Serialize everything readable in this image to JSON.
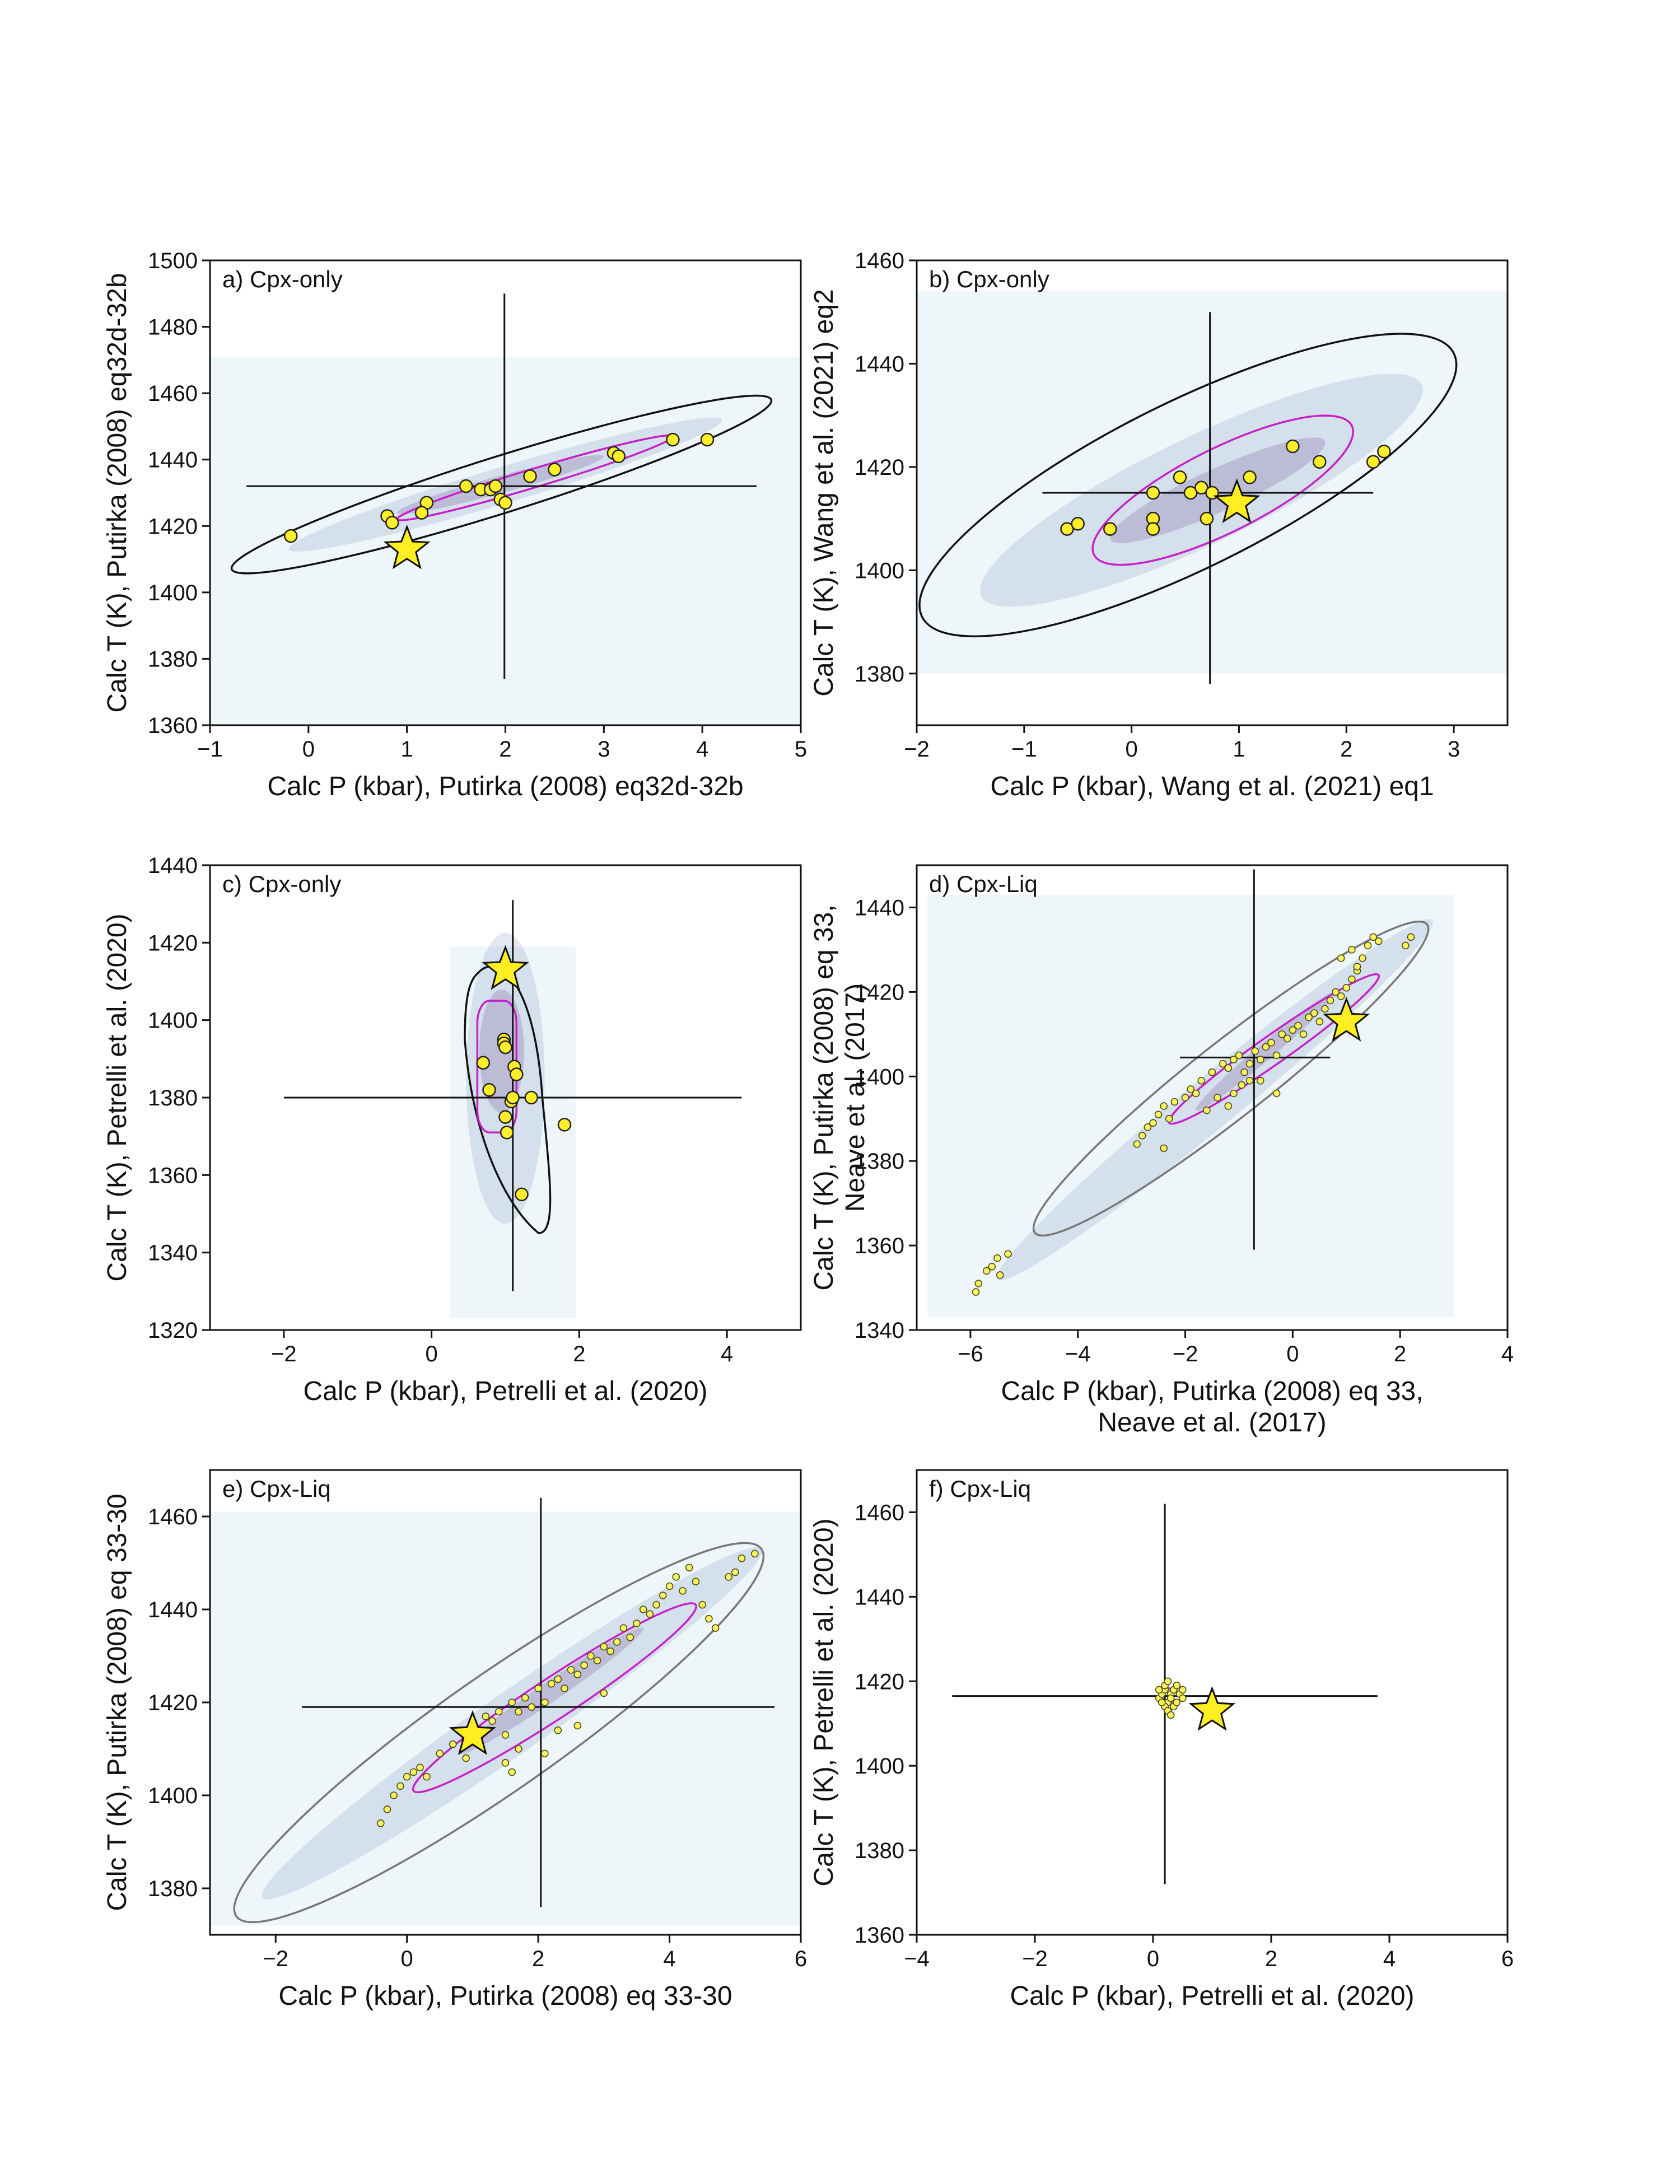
{
  "colors": {
    "points": "#ffef2a",
    "star": "#ffee22",
    "inner_contour": "#c81fc8",
    "outer_contour": "#111111",
    "outer_contour_grey": "#777777",
    "density_background": "#eef6fa",
    "density_core": "#6a3d8c"
  },
  "chart_data": [
    {
      "id": "a",
      "type": "scatter",
      "panel_label": "a) Cpx-only",
      "xlabel": [
        "Calc P (kbar), Putirka (2008) eq32d-32b"
      ],
      "ylabel": [
        "Calc T (K), Putirka (2008) eq32d-32b"
      ],
      "xlim": [
        -1,
        5
      ],
      "ylim": [
        1360,
        1500
      ],
      "xticks": [
        -1,
        0,
        1,
        2,
        3,
        4,
        5
      ],
      "yticks": [
        1360,
        1380,
        1400,
        1420,
        1440,
        1460,
        1480,
        1500
      ],
      "hexbin_extent": {
        "x": [
          -1,
          5
        ],
        "y": [
          1360,
          1471
        ]
      },
      "outer_contour": "black",
      "points": [
        [
          -0.18,
          1417
        ],
        [
          0.8,
          1423
        ],
        [
          0.85,
          1421
        ],
        [
          1.2,
          1427
        ],
        [
          1.15,
          1424
        ],
        [
          1.6,
          1432
        ],
        [
          1.75,
          1431
        ],
        [
          1.85,
          1431
        ],
        [
          1.9,
          1432
        ],
        [
          1.95,
          1428
        ],
        [
          2.0,
          1427
        ],
        [
          2.25,
          1435
        ],
        [
          2.5,
          1437
        ],
        [
          3.1,
          1442
        ],
        [
          3.15,
          1441
        ],
        [
          3.7,
          1446
        ],
        [
          4.05,
          1446
        ]
      ],
      "star": [
        1.0,
        1413
      ],
      "crosshair": {
        "x": 1.99,
        "y": 1432,
        "x_range": [
          -0.63,
          4.55
        ],
        "y_range": [
          1374,
          1490
        ]
      },
      "outer_ellipse": [
        [
          -0.78,
          1407
        ],
        [
          4.7,
          1458
        ],
        [
          4.55,
          1460
        ],
        [
          -0.6,
          1410
        ]
      ],
      "inner_ellipse": {
        "cx": 2.0,
        "cy": 1432,
        "ex": 2.45,
        "ey": 1445,
        "w": 0.18
      }
    },
    {
      "id": "b",
      "type": "scatter",
      "panel_label": "b) Cpx-only",
      "xlabel": [
        "Calc P (kbar), Wang et al. (2021) eq1"
      ],
      "ylabel": [
        "Calc T (K), Wang et al. (2021)  eq2"
      ],
      "xlim": [
        -2,
        3.5
      ],
      "ylim": [
        1370,
        1460
      ],
      "xticks": [
        -2,
        -1,
        0,
        1,
        2,
        3
      ],
      "yticks": [
        1380,
        1400,
        1420,
        1440,
        1460
      ],
      "hexbin_extent": {
        "x": [
          -2,
          3.5
        ],
        "y": [
          1380,
          1454
        ]
      },
      "outer_contour": "black",
      "points": [
        [
          -0.6,
          1408
        ],
        [
          -0.5,
          1409
        ],
        [
          -0.2,
          1408
        ],
        [
          0.2,
          1415
        ],
        [
          0.2,
          1410
        ],
        [
          0.2,
          1408
        ],
        [
          0.45,
          1418
        ],
        [
          0.55,
          1415
        ],
        [
          0.65,
          1416
        ],
        [
          0.7,
          1410
        ],
        [
          0.75,
          1415
        ],
        [
          1.1,
          1418
        ],
        [
          1.5,
          1424
        ],
        [
          1.75,
          1421
        ],
        [
          2.25,
          1421
        ],
        [
          2.35,
          1423
        ]
      ],
      "star": [
        0.98,
        1413
      ],
      "crosshair": {
        "x": 0.73,
        "y": 1415,
        "x_range": [
          -0.83,
          2.25
        ],
        "y_range": [
          1378,
          1450
        ]
      },
      "inner_ellipse": {
        "cx": 0.75,
        "cy": 1415,
        "ex": 2.2,
        "ey": 1428,
        "w": 0.6
      }
    },
    {
      "id": "c",
      "type": "scatter",
      "panel_label": "c) Cpx-only",
      "xlabel": [
        "Calc P (kbar), Petrelli et al. (2020)"
      ],
      "ylabel": [
        "Calc T (K), Petrelli et al. (2020)"
      ],
      "xlim": [
        -3,
        5
      ],
      "ylim": [
        1320,
        1440
      ],
      "xticks": [
        -2,
        0,
        2,
        4
      ],
      "yticks": [
        1320,
        1340,
        1360,
        1380,
        1400,
        1420,
        1440
      ],
      "hexbin_extent": {
        "x": [
          0.25,
          1.95
        ],
        "y": [
          1323,
          1419
        ]
      },
      "outer_contour": "black",
      "points": [
        [
          0.7,
          1389
        ],
        [
          0.78,
          1382
        ],
        [
          0.98,
          1395
        ],
        [
          0.98,
          1394
        ],
        [
          1.0,
          1393
        ],
        [
          1.0,
          1375
        ],
        [
          1.02,
          1371
        ],
        [
          1.08,
          1379
        ],
        [
          1.12,
          1388
        ],
        [
          1.15,
          1386
        ],
        [
          1.1,
          1380
        ],
        [
          1.22,
          1355
        ],
        [
          1.35,
          1380
        ],
        [
          1.8,
          1373
        ]
      ],
      "star": [
        1.0,
        1413
      ],
      "crosshair": {
        "x": 1.1,
        "y": 1380,
        "x_range": [
          -2.0,
          4.2
        ],
        "y_range": [
          1330,
          1431
        ]
      }
    },
    {
      "id": "d",
      "type": "scatter",
      "panel_label": "d) Cpx-Liq",
      "xlabel": [
        "Calc P (kbar), Putirka (2008) eq 33,",
        "Neave et al. (2017)"
      ],
      "ylabel": [
        "Calc T (K), Putirka (2008) eq 33,",
        "Neave et al. (2017)"
      ],
      "xlim": [
        -7,
        4
      ],
      "ylim": [
        1340,
        1450
      ],
      "xticks": [
        -6,
        -4,
        -2,
        0,
        2,
        4
      ],
      "yticks": [
        1340,
        1360,
        1380,
        1400,
        1420,
        1440
      ],
      "hexbin_extent": {
        "x": [
          -6.8,
          3.0
        ],
        "y": [
          1343,
          1443
        ]
      },
      "outer_contour": "grey",
      "points_small": true,
      "points": [
        [
          -5.9,
          1349
        ],
        [
          -5.85,
          1351
        ],
        [
          -5.7,
          1354
        ],
        [
          -5.6,
          1355
        ],
        [
          -5.5,
          1357
        ],
        [
          -5.45,
          1353
        ],
        [
          -5.3,
          1358
        ],
        [
          -2.9,
          1384
        ],
        [
          -2.8,
          1386
        ],
        [
          -2.7,
          1388
        ],
        [
          -2.6,
          1389
        ],
        [
          -2.5,
          1391
        ],
        [
          -2.4,
          1393
        ],
        [
          -2.3,
          1390
        ],
        [
          -2.2,
          1394
        ],
        [
          -2.0,
          1395
        ],
        [
          -1.9,
          1397
        ],
        [
          -1.8,
          1396
        ],
        [
          -1.7,
          1399
        ],
        [
          -1.5,
          1401
        ],
        [
          -1.4,
          1395
        ],
        [
          -1.3,
          1403
        ],
        [
          -1.2,
          1402
        ],
        [
          -1.1,
          1404
        ],
        [
          -1.0,
          1405
        ],
        [
          -0.9,
          1401
        ],
        [
          -0.8,
          1403
        ],
        [
          -0.7,
          1406
        ],
        [
          -0.6,
          1404
        ],
        [
          -0.5,
          1407
        ],
        [
          -0.4,
          1408
        ],
        [
          -0.3,
          1405
        ],
        [
          -0.2,
          1410
        ],
        [
          -0.1,
          1409
        ],
        [
          0.0,
          1411
        ],
        [
          0.1,
          1412
        ],
        [
          0.2,
          1410
        ],
        [
          0.3,
          1414
        ],
        [
          0.4,
          1415
        ],
        [
          0.5,
          1413
        ],
        [
          0.6,
          1416
        ],
        [
          0.7,
          1418
        ],
        [
          0.8,
          1420
        ],
        [
          0.9,
          1419
        ],
        [
          1.0,
          1421
        ],
        [
          1.1,
          1423
        ],
        [
          1.2,
          1425
        ],
        [
          1.3,
          1428
        ],
        [
          1.4,
          1431
        ],
        [
          1.5,
          1433
        ],
        [
          1.6,
          1432
        ],
        [
          -1.1,
          1396
        ],
        [
          -1.2,
          1393
        ],
        [
          -0.95,
          1398
        ],
        [
          -0.6,
          1399
        ],
        [
          -0.3,
          1396
        ],
        [
          -2.4,
          1383
        ],
        [
          -1.6,
          1392
        ],
        [
          -0.8,
          1399
        ],
        [
          0.9,
          1428
        ],
        [
          1.1,
          1430
        ],
        [
          1.2,
          1426
        ],
        [
          2.1,
          1431
        ],
        [
          2.2,
          1433
        ]
      ],
      "star": [
        1.0,
        1413
      ],
      "crosshair": {
        "x": -0.72,
        "y": 1404.5,
        "x_range": [
          -2.1,
          0.7
        ],
        "y_range": [
          1359,
          1449
        ]
      },
      "outer_ellipse": {
        "x1": -4.8,
        "y1": 1363,
        "x2": 2.5,
        "y2": 1436,
        "w": 0.75
      },
      "inner_ellipse": {
        "x1": -2.3,
        "y1": 1389,
        "x2": 1.6,
        "y2": 1424,
        "w": 0.55
      }
    },
    {
      "id": "e",
      "type": "scatter",
      "panel_label": "e) Cpx-Liq",
      "xlabel": [
        "Calc P (kbar), Putirka (2008) eq 33-30"
      ],
      "ylabel": [
        "Calc T (K), Putirka (2008) eq 33-30"
      ],
      "xlim": [
        -3,
        6
      ],
      "ylim": [
        1370,
        1470
      ],
      "xticks": [
        -2,
        0,
        2,
        4,
        6
      ],
      "yticks": [
        1380,
        1400,
        1420,
        1440,
        1460
      ],
      "hexbin_extent": {
        "x": [
          -3,
          6
        ],
        "y": [
          1372,
          1461
        ]
      },
      "outer_contour": "grey",
      "points_small": true,
      "points": [
        [
          -0.4,
          1394
        ],
        [
          -0.3,
          1397
        ],
        [
          -0.2,
          1400
        ],
        [
          -0.1,
          1402
        ],
        [
          0.0,
          1404
        ],
        [
          0.1,
          1405
        ],
        [
          0.2,
          1406
        ],
        [
          0.3,
          1404
        ],
        [
          0.5,
          1409
        ],
        [
          0.7,
          1411
        ],
        [
          0.9,
          1413
        ],
        [
          1.1,
          1414
        ],
        [
          1.3,
          1416
        ],
        [
          1.4,
          1418
        ],
        [
          1.5,
          1413
        ],
        [
          1.6,
          1420
        ],
        [
          1.7,
          1418
        ],
        [
          1.8,
          1421
        ],
        [
          1.9,
          1419
        ],
        [
          2.0,
          1423
        ],
        [
          2.1,
          1420
        ],
        [
          2.2,
          1424
        ],
        [
          2.3,
          1425
        ],
        [
          2.4,
          1423
        ],
        [
          2.5,
          1427
        ],
        [
          2.6,
          1426
        ],
        [
          2.7,
          1428
        ],
        [
          2.8,
          1430
        ],
        [
          2.9,
          1429
        ],
        [
          3.0,
          1432
        ],
        [
          3.1,
          1431
        ],
        [
          3.2,
          1433
        ],
        [
          3.3,
          1436
        ],
        [
          3.4,
          1434
        ],
        [
          3.5,
          1437
        ],
        [
          3.6,
          1440
        ],
        [
          3.7,
          1439
        ],
        [
          3.8,
          1441
        ],
        [
          3.9,
          1443
        ],
        [
          4.0,
          1445
        ],
        [
          4.1,
          1447
        ],
        [
          4.2,
          1444
        ],
        [
          4.3,
          1449
        ],
        [
          4.4,
          1446
        ],
        [
          4.5,
          1441
        ],
        [
          4.6,
          1438
        ],
        [
          4.7,
          1436
        ],
        [
          4.9,
          1447
        ],
        [
          5.0,
          1448
        ],
        [
          5.1,
          1451
        ],
        [
          5.3,
          1452
        ],
        [
          1.5,
          1407
        ],
        [
          1.6,
          1405
        ],
        [
          1.7,
          1410
        ],
        [
          2.1,
          1409
        ],
        [
          2.3,
          1414
        ],
        [
          2.6,
          1415
        ],
        [
          3.0,
          1422
        ],
        [
          1.2,
          1417
        ],
        [
          0.9,
          1408
        ]
      ],
      "star": [
        1.0,
        1413
      ],
      "crosshair": {
        "x": 2.04,
        "y": 1419,
        "x_range": [
          -1.6,
          5.6
        ],
        "y_range": [
          1376,
          1464
        ]
      },
      "outer_ellipse": {
        "x1": -2.6,
        "y1": 1374,
        "x2": 5.4,
        "y2": 1453,
        "w": 0.9
      },
      "inner_ellipse": {
        "x1": 0.1,
        "y1": 1401,
        "x2": 4.4,
        "y2": 1441,
        "w": 0.6
      }
    },
    {
      "id": "f",
      "type": "scatter",
      "panel_label": "f) Cpx-Liq",
      "xlabel": [
        "Calc P (kbar), Petrelli et al. (2020)"
      ],
      "ylabel": [
        "Calc T (K), Petrelli et al. (2020)"
      ],
      "xlim": [
        -4,
        6
      ],
      "ylim": [
        1360,
        1470
      ],
      "xticks": [
        -4,
        -2,
        0,
        2,
        4,
        6
      ],
      "yticks": [
        1360,
        1380,
        1400,
        1420,
        1440,
        1460
      ],
      "points_small": true,
      "points": [
        [
          0.1,
          1416
        ],
        [
          0.15,
          1417
        ],
        [
          0.2,
          1418
        ],
        [
          0.25,
          1415
        ],
        [
          0.3,
          1417
        ],
        [
          0.35,
          1418
        ],
        [
          0.2,
          1414
        ],
        [
          0.25,
          1413
        ],
        [
          0.3,
          1416
        ],
        [
          0.4,
          1419
        ],
        [
          0.45,
          1417
        ],
        [
          0.5,
          1416
        ],
        [
          0.2,
          1419
        ],
        [
          0.15,
          1415
        ],
        [
          0.3,
          1412
        ],
        [
          0.35,
          1414
        ],
        [
          0.1,
          1418
        ],
        [
          0.4,
          1415
        ],
        [
          0.25,
          1420
        ],
        [
          0.5,
          1418
        ]
      ],
      "star": [
        1.0,
        1413
      ],
      "crosshair": {
        "x": 0.2,
        "y": 1416.5,
        "x_range": [
          -3.4,
          3.8
        ],
        "y_range": [
          1372,
          1462
        ]
      }
    }
  ]
}
